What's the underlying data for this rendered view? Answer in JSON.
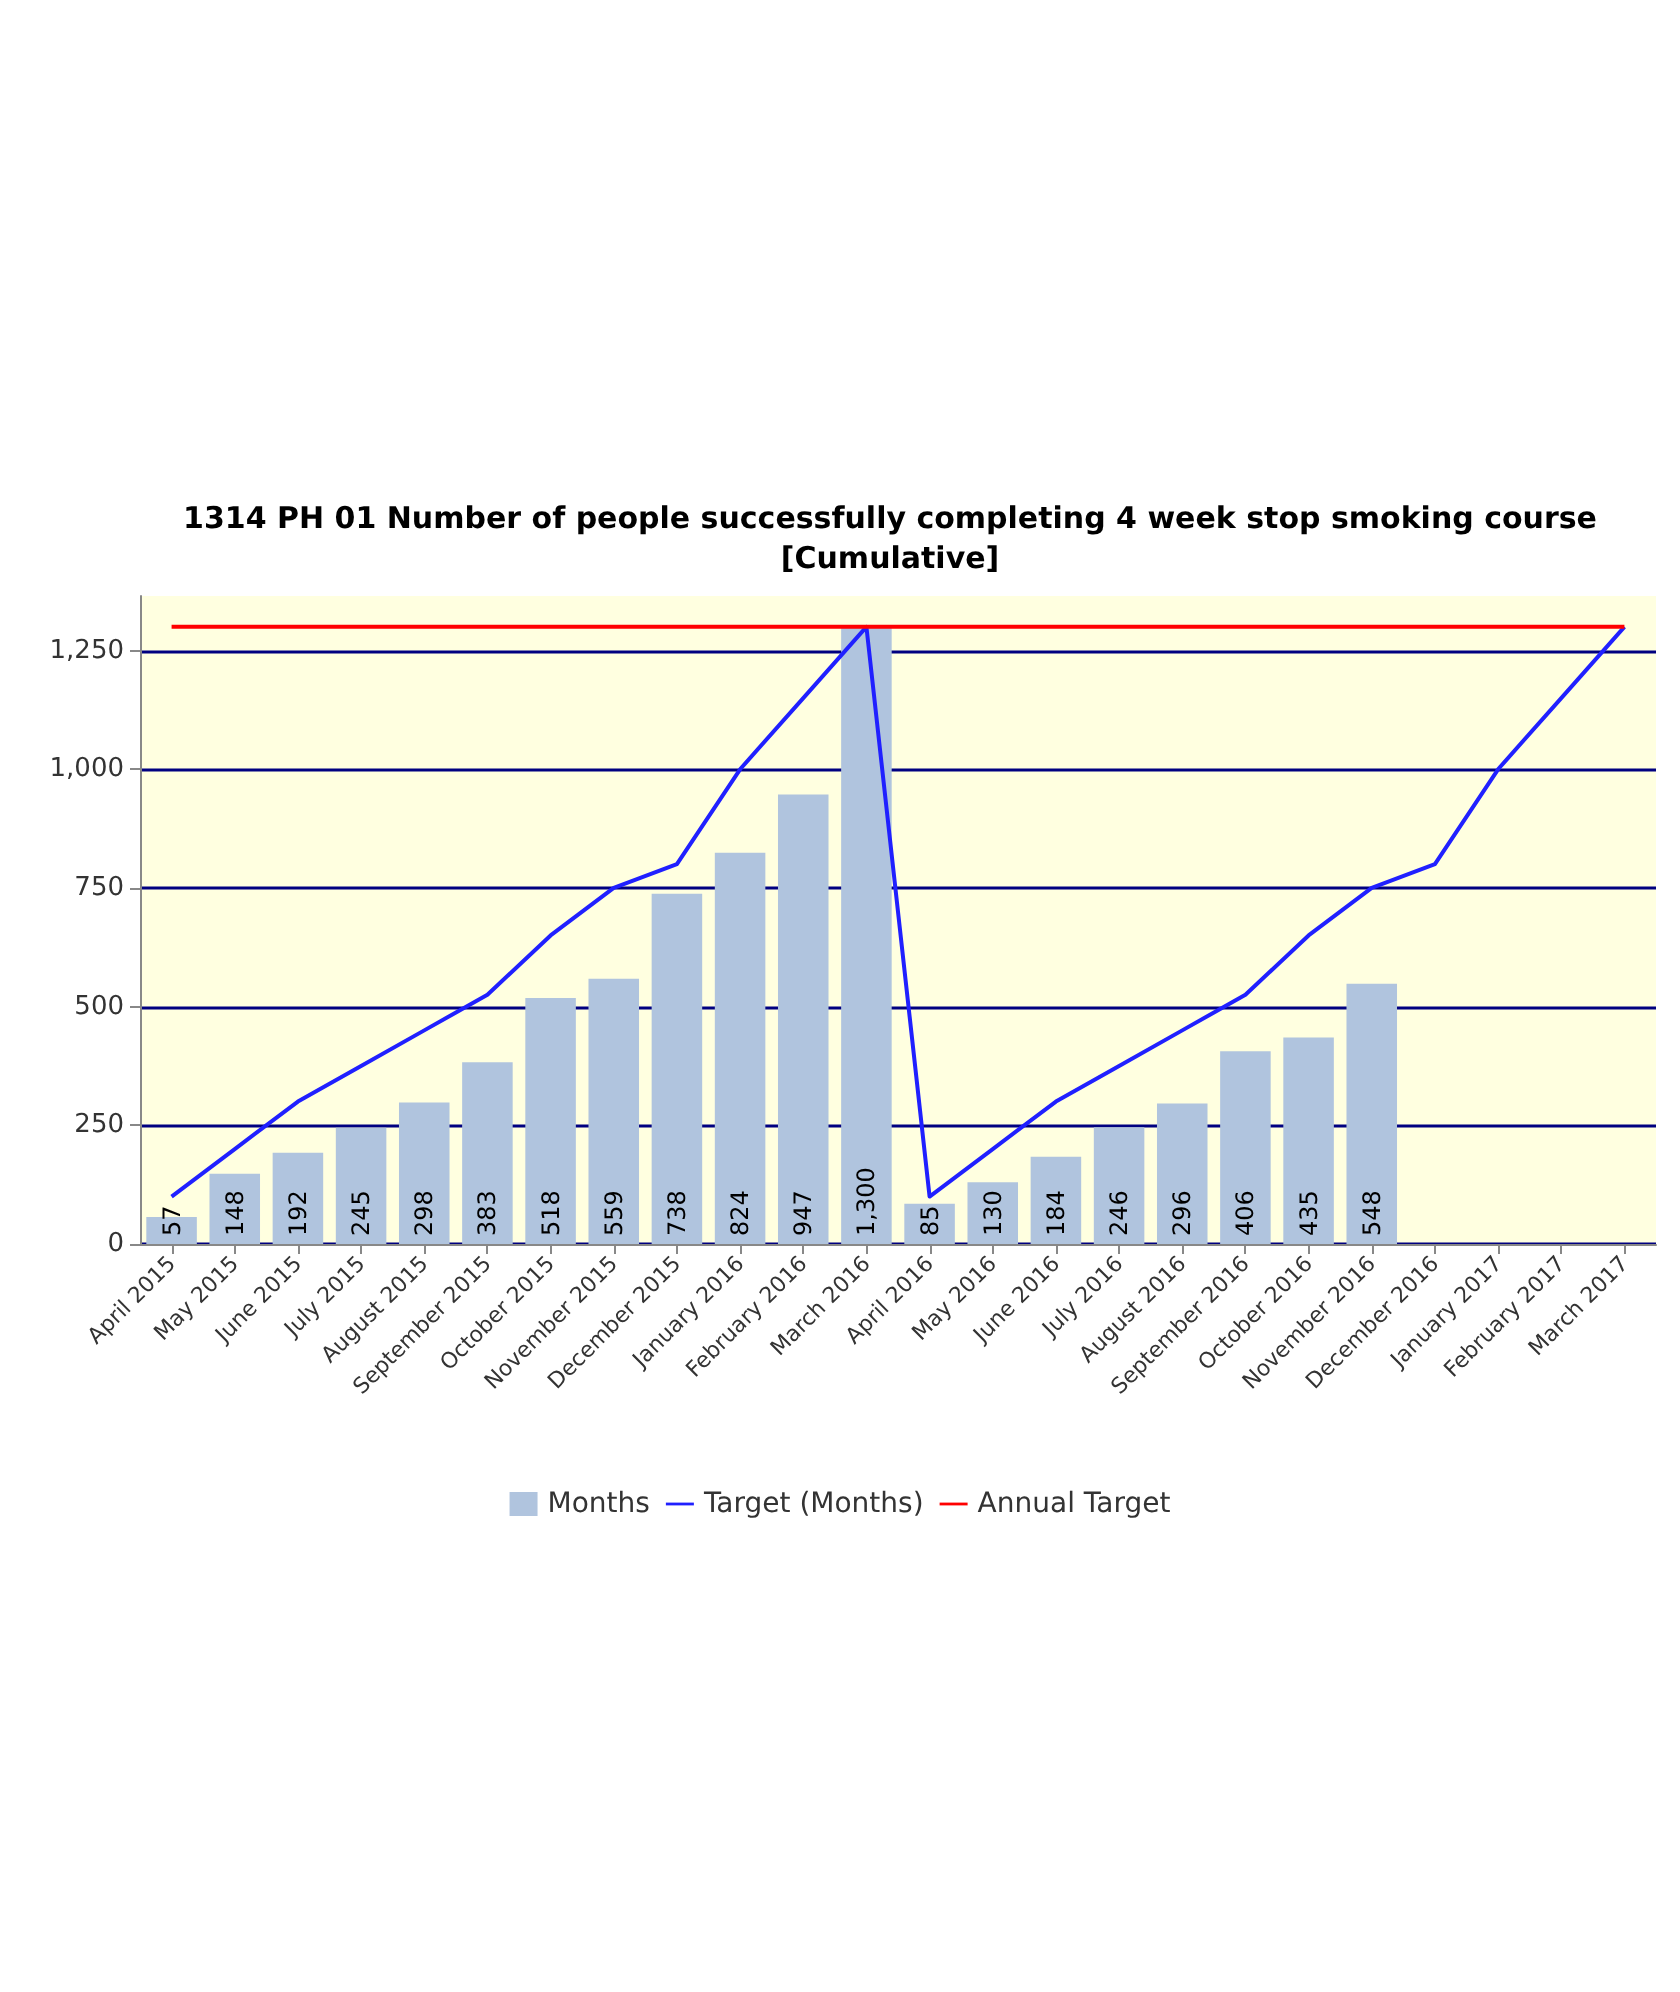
{
  "chart_data": {
    "type": "bar",
    "title": "1314 PH 01 Number of people successfully completing 4 week stop smoking course\n[Cumulative]",
    "categories": [
      "April 2015",
      "May 2015",
      "June 2015",
      "July 2015",
      "August 2015",
      "September 2015",
      "October 2015",
      "November 2015",
      "December 2015",
      "January 2016",
      "February 2016",
      "March 2016",
      "April 2016",
      "May 2016",
      "June 2016",
      "July 2016",
      "August 2016",
      "September 2016",
      "October 2016",
      "November 2016",
      "December 2016",
      "January 2017",
      "February 2017",
      "March 2017"
    ],
    "series": [
      {
        "name": "Months",
        "color": "#b0c4de",
        "values": [
          57,
          148,
          192,
          245,
          298,
          383,
          518,
          559,
          738,
          824,
          947,
          1300,
          85,
          130,
          184,
          246,
          296,
          406,
          435,
          548,
          null,
          null,
          null,
          null
        ],
        "value_labels": [
          "57",
          "148",
          "192",
          "245",
          "298",
          "383",
          "518",
          "559",
          "738",
          "824",
          "947",
          "1,300",
          "85",
          "130",
          "184",
          "246",
          "296",
          "406",
          "435",
          "548",
          null,
          null,
          null,
          null
        ]
      },
      {
        "name": "Target (Months)",
        "type": "line",
        "color": "#2020ff",
        "values": [
          100,
          200,
          300,
          375,
          450,
          525,
          650,
          750,
          800,
          1000,
          1150,
          1300,
          100,
          200,
          300,
          375,
          450,
          525,
          650,
          750,
          800,
          1000,
          1150,
          1300
        ]
      },
      {
        "name": "Annual Target",
        "type": "line",
        "color": "#ff0000",
        "values": [
          1300,
          1300,
          1300,
          1300,
          1300,
          1300,
          1300,
          1300,
          1300,
          1300,
          1300,
          1300,
          1300,
          1300,
          1300,
          1300,
          1300,
          1300,
          1300,
          1300,
          1300,
          1300,
          1300,
          1300
        ]
      }
    ],
    "ylim": [
      0,
      1365
    ],
    "yticks": [
      0,
      {
        "value": 250,
        "label": "250"
      },
      {
        "value": 500,
        "label": "500"
      },
      {
        "value": 750,
        "label": "750"
      },
      {
        "value": 1000,
        "label": "1,000"
      },
      {
        "value": 1250,
        "label": "1,250"
      }
    ],
    "grid": "y",
    "legend": "bottom"
  }
}
